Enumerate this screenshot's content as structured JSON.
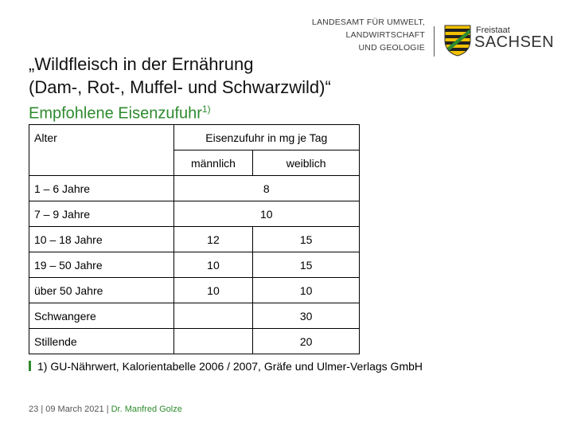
{
  "logo": {
    "line1": "LANDESAMT FÜR UMWELT,",
    "line2": "LANDWIRTSCHAFT",
    "line3": "UND GEOLOGIE",
    "state_small": "Freistaat",
    "state_big": "SACHSEN",
    "icon": "saxony-coat-of-arms-icon"
  },
  "title_line1": "„Wildfleisch in der Ernährung",
  "title_line2": "(Dam-, Rot-, Muffel- und Schwarzwild)“",
  "subtitle": "Empfohlene Eisenzufuhr",
  "subtitle_sup": "1)",
  "table": {
    "col_age": "Alter",
    "col_intake": "Eisenzufuhr in mg je Tag",
    "col_male": "männlich",
    "col_female": "weiblich",
    "rows": [
      {
        "age": "1 – 6 Jahre",
        "combined": "8"
      },
      {
        "age": "7 – 9 Jahre",
        "combined": "10"
      },
      {
        "age": "10 – 18 Jahre",
        "male": "12",
        "female": "15"
      },
      {
        "age": "19 – 50 Jahre",
        "male": "10",
        "female": "15"
      },
      {
        "age": "über 50 Jahre",
        "male": "10",
        "female": "10"
      },
      {
        "age": "Schwangere",
        "male": "",
        "female": "30"
      },
      {
        "age": "Stillende",
        "male": "",
        "female": "20"
      }
    ]
  },
  "footnote": "1) GU-Nährwert, Kalorientabelle 2006 / 2007, Gräfe und Ulmer-Verlags GmbH",
  "footer": {
    "page": "23",
    "sep1": "|",
    "date": "09 March 2021",
    "sep2": "|",
    "author": "Dr. Manfred Golze"
  },
  "colors": {
    "accent": "#2e8b2e",
    "text": "#000000"
  }
}
